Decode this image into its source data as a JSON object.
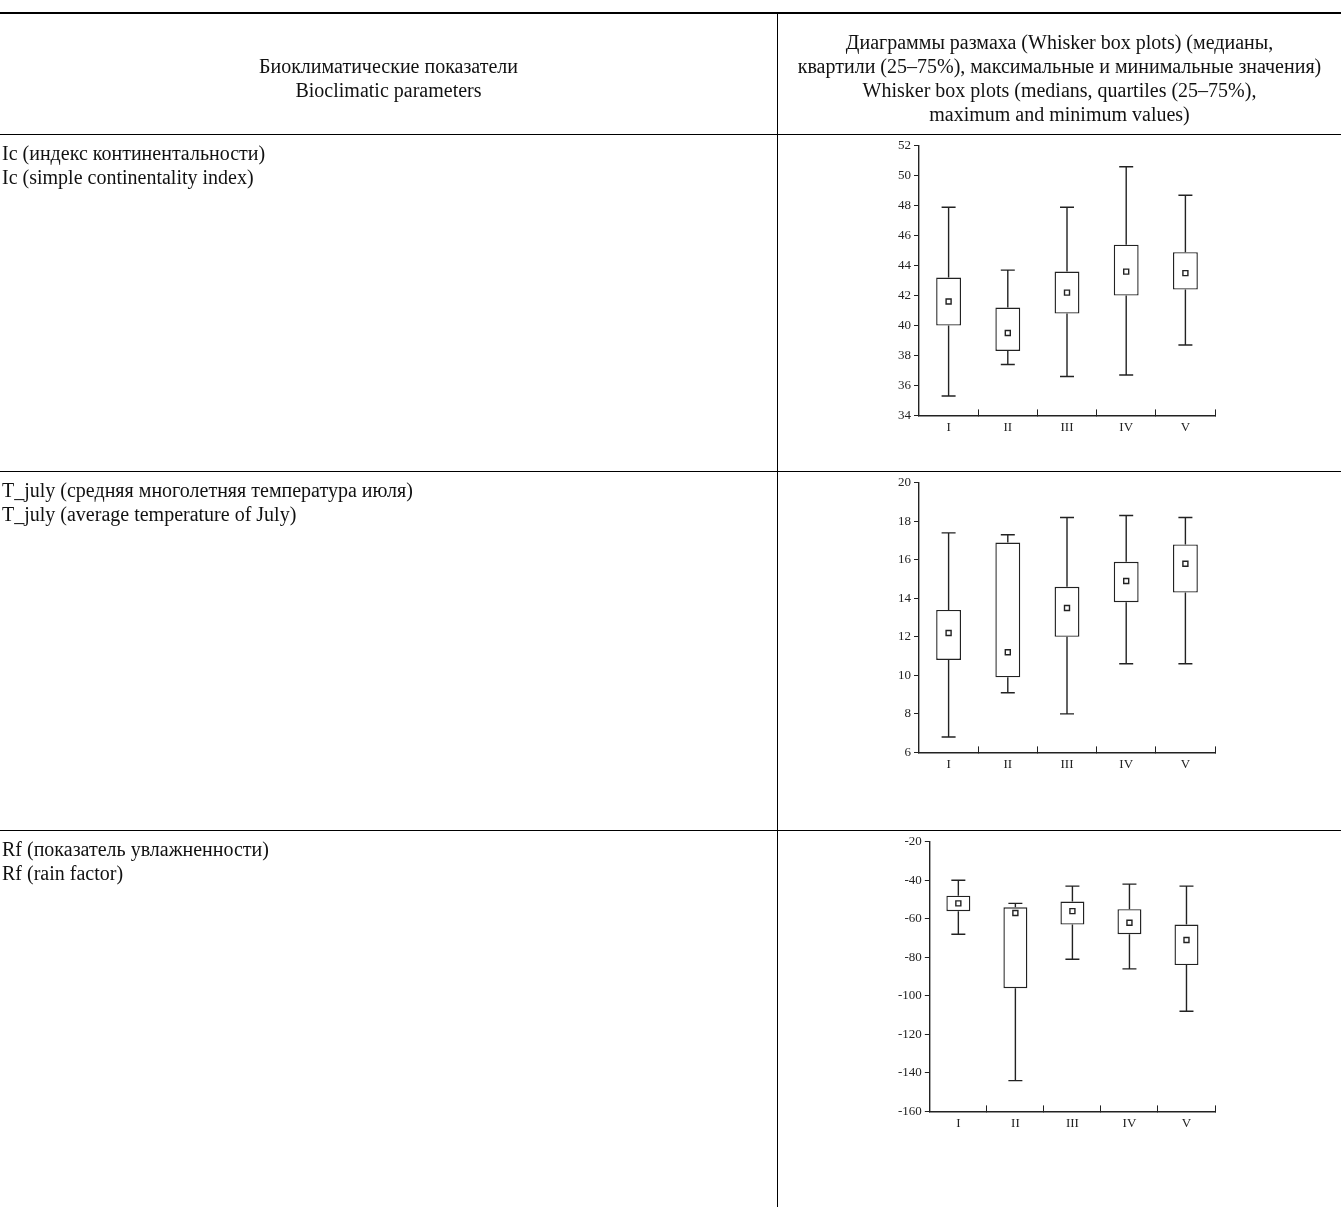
{
  "chart_data": [
    {
      "type": "box",
      "ylabel": "Ic (индекс континентальности)\nIc (simple continentality index)",
      "annotations": [
        "Биоклиматические показатели\nBioclimatic parameters",
        "Диаграммы размаха (Whisker box plots) (медианы,\nквартили (25–75%), максимальные и минимальные значения)\nWhisker box plots (medians, quartiles (25–75%),\nmaximum and minimum values)"
      ],
      "categories": [
        "I",
        "II",
        "III",
        "IV",
        "V"
      ],
      "ylim": [
        34,
        52
      ],
      "yticks": [
        34,
        36,
        38,
        40,
        42,
        44,
        46,
        48,
        50,
        52
      ],
      "boxes": [
        {
          "low": 35.3,
          "q1": 40.0,
          "median": 41.6,
          "q3": 43.2,
          "high": 47.9
        },
        {
          "low": 37.4,
          "q1": 38.3,
          "median": 39.5,
          "q3": 41.2,
          "high": 43.7
        },
        {
          "low": 36.6,
          "q1": 40.8,
          "median": 42.2,
          "q3": 43.6,
          "high": 47.9
        },
        {
          "low": 36.7,
          "q1": 42.0,
          "median": 43.6,
          "q3": 45.4,
          "high": 50.6
        },
        {
          "low": 38.7,
          "q1": 42.4,
          "median": 43.5,
          "q3": 44.9,
          "high": 48.7
        }
      ]
    },
    {
      "type": "box",
      "ylabel": "T_july (средняя многолетняя температура июля)\nT_july (average temperature of July)",
      "categories": [
        "I",
        "II",
        "III",
        "IV",
        "V"
      ],
      "ylim": [
        6,
        20
      ],
      "yticks": [
        6,
        8,
        10,
        12,
        14,
        16,
        18,
        20
      ],
      "boxes": [
        {
          "low": 6.8,
          "q1": 10.8,
          "median": 12.2,
          "q3": 13.4,
          "high": 17.4
        },
        {
          "low": 9.1,
          "q1": 9.9,
          "median": 11.2,
          "q3": 16.9,
          "high": 17.3
        },
        {
          "low": 8.0,
          "q1": 12.0,
          "median": 13.5,
          "q3": 14.6,
          "high": 18.2
        },
        {
          "low": 10.6,
          "q1": 13.8,
          "median": 14.9,
          "q3": 15.9,
          "high": 18.3
        },
        {
          "low": 10.6,
          "q1": 14.3,
          "median": 15.8,
          "q3": 16.8,
          "high": 18.2
        }
      ]
    },
    {
      "type": "box",
      "ylabel": "Rf (показатель увлажненности)\nRf (rain factor)",
      "categories": [
        "I",
        "II",
        "III",
        "IV",
        "V"
      ],
      "ylim": [
        -160,
        -20
      ],
      "yticks": [
        -160,
        -140,
        -120,
        -100,
        -80,
        -60,
        -40,
        -20
      ],
      "boxes": [
        {
          "low": -68,
          "q1": -56,
          "median": -52,
          "q3": -48,
          "high": -40
        },
        {
          "low": -144,
          "q1": -96,
          "median": -57,
          "q3": -54,
          "high": -52
        },
        {
          "low": -81,
          "q1": -63,
          "median": -56,
          "q3": -51,
          "high": -43
        },
        {
          "low": -86,
          "q1": -68,
          "median": -62,
          "q3": -55,
          "high": -42
        },
        {
          "low": -108,
          "q1": -84,
          "median": -71,
          "q3": -63,
          "high": -43
        }
      ]
    }
  ]
}
